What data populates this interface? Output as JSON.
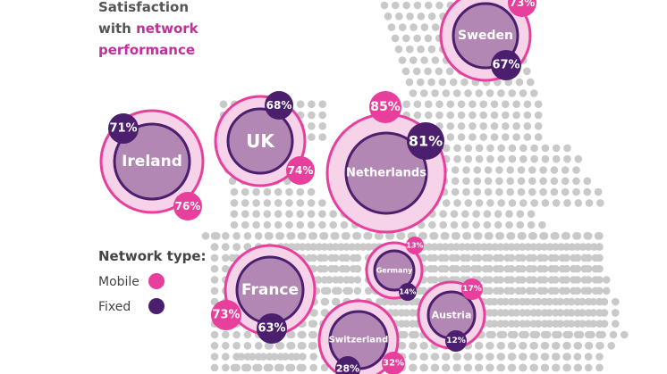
{
  "heading": {
    "line1": "Satisfaction",
    "line2_prefix": "with ",
    "line2_accent": "network",
    "line3_accent": "performance"
  },
  "legend": {
    "title": "Network type:",
    "mobile": "Mobile",
    "fixed": "Fixed"
  },
  "colors": {
    "mobile": "#e83e9c",
    "fixed": "#4b1e6e",
    "bubble_outer": "#f6d3e8",
    "bubble_inner": "#b387b4",
    "map_dots": "#c9c9c9"
  },
  "countries": [
    {
      "name": "Sweden",
      "mobile": "73%",
      "fixed": "67%",
      "mobile_value": 73,
      "fixed_value": 67
    },
    {
      "name": "UK",
      "mobile": "74%",
      "fixed": "68%",
      "mobile_value": 74,
      "fixed_value": 68
    },
    {
      "name": "Ireland",
      "mobile": "76%",
      "fixed": "71%",
      "mobile_value": 76,
      "fixed_value": 71
    },
    {
      "name": "Netherlands",
      "mobile": "85%",
      "fixed": "81%",
      "mobile_value": 85,
      "fixed_value": 81
    },
    {
      "name": "France",
      "mobile": "73%",
      "fixed": "63%",
      "mobile_value": 73,
      "fixed_value": 63
    },
    {
      "name": "Germany",
      "mobile": "13%",
      "fixed": "14%",
      "mobile_value": 13,
      "fixed_value": 14
    },
    {
      "name": "Austria",
      "mobile": "17%",
      "fixed": "12%",
      "mobile_value": 17,
      "fixed_value": 12
    },
    {
      "name": "Switzerland",
      "mobile": "32%",
      "fixed": "28%",
      "mobile_value": 32,
      "fixed_value": 28
    }
  ]
}
